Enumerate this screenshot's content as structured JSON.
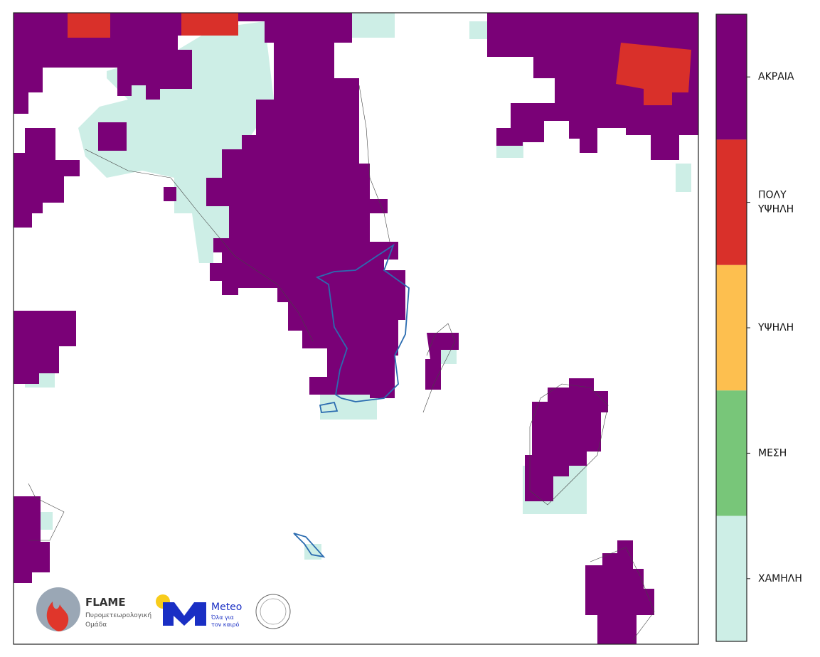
{
  "legend": {
    "levels": [
      {
        "lines": [
          "ΑΚΡΑΙΑ"
        ],
        "color": "#7a0177"
      },
      {
        "lines": [
          "ΠΟΛΥ",
          "ΥΨΗΛΗ"
        ],
        "color": "#d9302a"
      },
      {
        "lines": [
          "ΥΨΗΛΗ"
        ],
        "color": "#fdbf4f"
      },
      {
        "lines": [
          "ΜΕΣΗ"
        ],
        "color": "#78c679"
      },
      {
        "lines": [
          "ΧΑΜΗΛΗ"
        ],
        "color": "#cdeee6"
      }
    ]
  },
  "logos": {
    "flame": {
      "name": "FLAME",
      "line1": "Πυρομετεωρολογική",
      "line2": "Ομάδα"
    },
    "meteo": {
      "name": "Meteo",
      "line1": "Όλα για",
      "line2": "τον καιρό"
    }
  }
}
